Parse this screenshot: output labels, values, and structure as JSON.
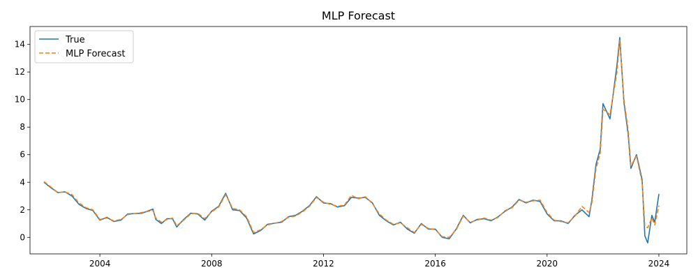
{
  "chart_data": {
    "type": "line",
    "title": "MLP Forecast",
    "xlabel": "",
    "ylabel": "",
    "xlim": [
      2001.5,
      2025.0
    ],
    "ylim": [
      -1.2,
      15.3
    ],
    "xticks": [
      2004,
      2008,
      2012,
      2016,
      2020,
      2024
    ],
    "xtick_labels": [
      "2004",
      "2008",
      "2012",
      "2016",
      "2020",
      "2024"
    ],
    "yticks": [
      0,
      2,
      4,
      6,
      8,
      10,
      12,
      14
    ],
    "ytick_labels": [
      "0",
      "2",
      "4",
      "6",
      "8",
      "10",
      "12",
      "14"
    ],
    "grid": false,
    "legend_position": "upper-left",
    "series": [
      {
        "name": "True",
        "color": "#1f77b4",
        "style": "solid",
        "points": [
          [
            2002.0,
            4.0
          ],
          [
            2002.25,
            3.6
          ],
          [
            2002.5,
            3.25
          ],
          [
            2002.75,
            3.3
          ],
          [
            2003.0,
            3.0
          ],
          [
            2003.25,
            2.4
          ],
          [
            2003.5,
            2.1
          ],
          [
            2003.75,
            1.95
          ],
          [
            2004.0,
            1.25
          ],
          [
            2004.25,
            1.45
          ],
          [
            2004.5,
            1.15
          ],
          [
            2004.75,
            1.25
          ],
          [
            2005.0,
            1.7
          ],
          [
            2005.5,
            1.75
          ],
          [
            2005.9,
            2.05
          ],
          [
            2006.0,
            1.3
          ],
          [
            2006.2,
            1.0
          ],
          [
            2006.4,
            1.35
          ],
          [
            2006.6,
            1.35
          ],
          [
            2006.75,
            0.75
          ],
          [
            2007.0,
            1.3
          ],
          [
            2007.25,
            1.75
          ],
          [
            2007.5,
            1.7
          ],
          [
            2007.75,
            1.25
          ],
          [
            2008.0,
            1.9
          ],
          [
            2008.25,
            2.25
          ],
          [
            2008.5,
            3.2
          ],
          [
            2008.75,
            2.0
          ],
          [
            2009.0,
            1.95
          ],
          [
            2009.25,
            1.4
          ],
          [
            2009.5,
            0.25
          ],
          [
            2009.75,
            0.5
          ],
          [
            2010.0,
            0.95
          ],
          [
            2010.5,
            1.1
          ],
          [
            2010.75,
            1.5
          ],
          [
            2011.0,
            1.6
          ],
          [
            2011.25,
            1.9
          ],
          [
            2011.5,
            2.3
          ],
          [
            2011.75,
            2.95
          ],
          [
            2012.0,
            2.5
          ],
          [
            2012.25,
            2.45
          ],
          [
            2012.5,
            2.2
          ],
          [
            2012.75,
            2.3
          ],
          [
            2013.0,
            2.9
          ],
          [
            2013.25,
            2.85
          ],
          [
            2013.5,
            2.9
          ],
          [
            2013.75,
            2.5
          ],
          [
            2014.0,
            1.6
          ],
          [
            2014.25,
            1.2
          ],
          [
            2014.5,
            0.9
          ],
          [
            2014.75,
            1.1
          ],
          [
            2015.0,
            0.6
          ],
          [
            2015.25,
            0.3
          ],
          [
            2015.5,
            1.0
          ],
          [
            2015.75,
            0.6
          ],
          [
            2016.0,
            0.6
          ],
          [
            2016.25,
            0.0
          ],
          [
            2016.5,
            -0.1
          ],
          [
            2016.75,
            0.6
          ],
          [
            2017.0,
            1.6
          ],
          [
            2017.25,
            1.05
          ],
          [
            2017.5,
            1.3
          ],
          [
            2017.75,
            1.35
          ],
          [
            2018.0,
            1.2
          ],
          [
            2018.25,
            1.5
          ],
          [
            2018.5,
            1.9
          ],
          [
            2018.75,
            2.2
          ],
          [
            2019.0,
            2.75
          ],
          [
            2019.25,
            2.5
          ],
          [
            2019.5,
            2.7
          ],
          [
            2019.75,
            2.6
          ],
          [
            2020.0,
            1.7
          ],
          [
            2020.25,
            1.2
          ],
          [
            2020.5,
            1.2
          ],
          [
            2020.75,
            1.0
          ],
          [
            2021.0,
            1.6
          ],
          [
            2021.25,
            2.0
          ],
          [
            2021.5,
            1.5
          ],
          [
            2021.6,
            2.7
          ],
          [
            2021.75,
            5.3
          ],
          [
            2021.9,
            6.4
          ],
          [
            2022.0,
            9.7
          ],
          [
            2022.25,
            8.6
          ],
          [
            2022.5,
            12.5
          ],
          [
            2022.6,
            14.5
          ],
          [
            2022.75,
            9.8
          ],
          [
            2022.9,
            7.5
          ],
          [
            2023.0,
            5.0
          ],
          [
            2023.2,
            6.0
          ],
          [
            2023.4,
            4.2
          ],
          [
            2023.5,
            0.1
          ],
          [
            2023.6,
            -0.4
          ],
          [
            2023.75,
            1.6
          ],
          [
            2023.85,
            1.1
          ],
          [
            2024.0,
            3.15
          ]
        ]
      },
      {
        "name": "MLP Forecast",
        "color": "#ff7f0e",
        "style": "dashed",
        "points": [
          [
            2002.0,
            4.05
          ],
          [
            2002.25,
            3.65
          ],
          [
            2002.5,
            3.25
          ],
          [
            2002.75,
            3.3
          ],
          [
            2003.0,
            3.1
          ],
          [
            2003.25,
            2.5
          ],
          [
            2003.5,
            2.15
          ],
          [
            2003.75,
            2.0
          ],
          [
            2004.0,
            1.3
          ],
          [
            2004.25,
            1.4
          ],
          [
            2004.5,
            1.2
          ],
          [
            2004.75,
            1.3
          ],
          [
            2005.0,
            1.65
          ],
          [
            2005.5,
            1.8
          ],
          [
            2005.9,
            1.95
          ],
          [
            2006.0,
            1.4
          ],
          [
            2006.2,
            1.1
          ],
          [
            2006.4,
            1.3
          ],
          [
            2006.6,
            1.4
          ],
          [
            2006.75,
            0.85
          ],
          [
            2007.0,
            1.25
          ],
          [
            2007.25,
            1.7
          ],
          [
            2007.5,
            1.75
          ],
          [
            2007.75,
            1.35
          ],
          [
            2008.0,
            1.85
          ],
          [
            2008.25,
            2.2
          ],
          [
            2008.5,
            3.1
          ],
          [
            2008.75,
            2.1
          ],
          [
            2009.0,
            2.0
          ],
          [
            2009.25,
            1.5
          ],
          [
            2009.5,
            0.35
          ],
          [
            2009.75,
            0.55
          ],
          [
            2010.0,
            0.9
          ],
          [
            2010.5,
            1.15
          ],
          [
            2010.75,
            1.45
          ],
          [
            2011.0,
            1.55
          ],
          [
            2011.25,
            1.85
          ],
          [
            2011.5,
            2.25
          ],
          [
            2011.75,
            2.9
          ],
          [
            2012.0,
            2.55
          ],
          [
            2012.25,
            2.4
          ],
          [
            2012.5,
            2.25
          ],
          [
            2012.75,
            2.35
          ],
          [
            2013.0,
            3.05
          ],
          [
            2013.25,
            2.8
          ],
          [
            2013.5,
            2.95
          ],
          [
            2013.75,
            2.45
          ],
          [
            2014.0,
            1.7
          ],
          [
            2014.25,
            1.25
          ],
          [
            2014.5,
            0.95
          ],
          [
            2014.75,
            1.05
          ],
          [
            2015.0,
            0.7
          ],
          [
            2015.25,
            0.35
          ],
          [
            2015.5,
            0.95
          ],
          [
            2015.75,
            0.65
          ],
          [
            2016.0,
            0.55
          ],
          [
            2016.25,
            0.05
          ],
          [
            2016.5,
            0.0
          ],
          [
            2016.75,
            0.55
          ],
          [
            2017.0,
            1.55
          ],
          [
            2017.25,
            1.1
          ],
          [
            2017.5,
            1.25
          ],
          [
            2017.75,
            1.4
          ],
          [
            2018.0,
            1.25
          ],
          [
            2018.25,
            1.45
          ],
          [
            2018.5,
            1.95
          ],
          [
            2018.75,
            2.15
          ],
          [
            2019.0,
            2.7
          ],
          [
            2019.25,
            2.55
          ],
          [
            2019.5,
            2.65
          ],
          [
            2019.75,
            2.7
          ],
          [
            2020.0,
            1.8
          ],
          [
            2020.25,
            1.25
          ],
          [
            2020.5,
            1.15
          ],
          [
            2020.75,
            1.05
          ],
          [
            2021.0,
            1.55
          ],
          [
            2021.25,
            2.25
          ],
          [
            2021.5,
            1.8
          ],
          [
            2021.6,
            2.5
          ],
          [
            2021.75,
            5.0
          ],
          [
            2021.9,
            6.1
          ],
          [
            2022.0,
            9.3
          ],
          [
            2022.25,
            8.9
          ],
          [
            2022.5,
            12.0
          ],
          [
            2022.6,
            14.3
          ],
          [
            2022.75,
            10.0
          ],
          [
            2022.9,
            7.8
          ],
          [
            2023.0,
            5.2
          ],
          [
            2023.2,
            5.9
          ],
          [
            2023.4,
            4.0
          ],
          [
            2023.5,
            0.8
          ],
          [
            2023.6,
            0.7
          ],
          [
            2023.75,
            1.4
          ],
          [
            2023.85,
            0.9
          ],
          [
            2024.0,
            2.3
          ]
        ]
      }
    ]
  }
}
